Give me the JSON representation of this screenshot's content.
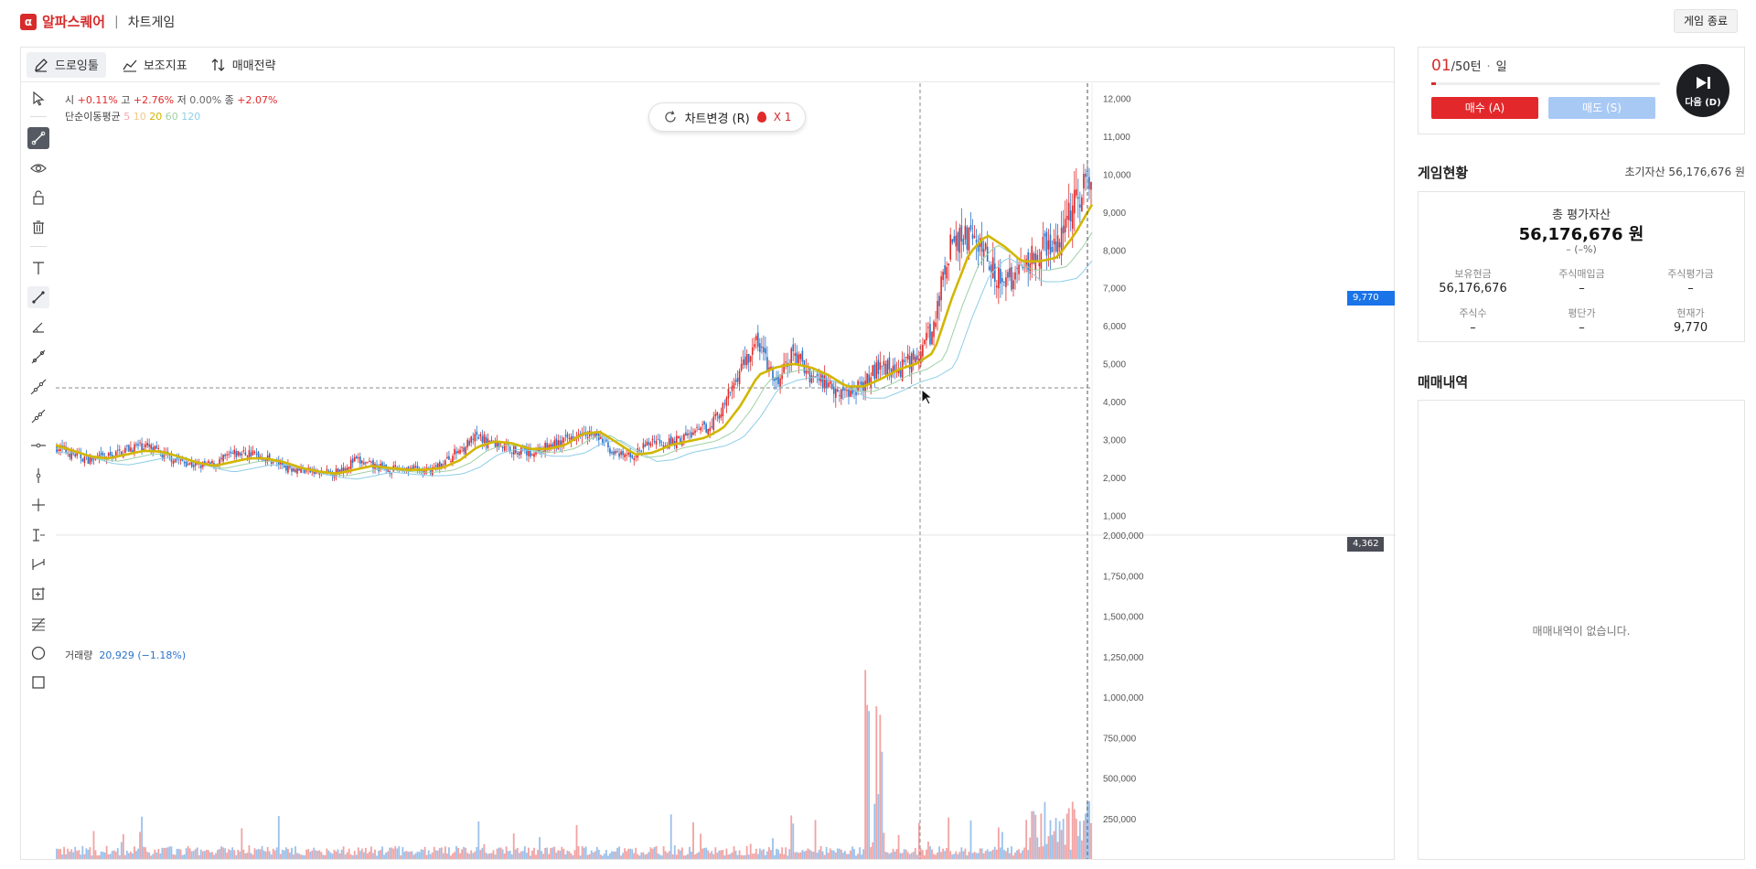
{
  "header": {
    "logo_mark": "α",
    "brand": "알파스퀘어",
    "separator": "|",
    "subtitle": "차트게임",
    "end_button": "게임 종료"
  },
  "toolbar": {
    "drawing": "드로잉툴",
    "indicator": "보조지표",
    "strategy": "매매전략"
  },
  "legend": {
    "open_label": "시",
    "open_val": "+0.11%",
    "high_label": "고",
    "high_val": "+2.76%",
    "low_label": "저",
    "low_val": "0.00%",
    "close_label": "종",
    "close_val": "+2.07%",
    "ma_label": "단순이동평균",
    "ma5": "5",
    "ma10": "10",
    "ma20": "20",
    "ma60": "60",
    "ma120": "120",
    "volume_label": "거래량",
    "volume_val": "20,929 (−1.18%)"
  },
  "chart_change": {
    "label": "차트변경 (R)",
    "count": "X 1"
  },
  "price_labels": {
    "current": "9,770",
    "crosshair": "4,362"
  },
  "colors": {
    "up": "#e02a2a",
    "down": "#2c73c8",
    "ma20": "#d2b600",
    "current_price": "#1a74e8",
    "buy": "#e3282b",
    "sell": "#a9c9f5"
  },
  "chart_data": {
    "type": "candlestick",
    "price_axis_ticks": [
      "12,000",
      "11,000",
      "10,000",
      "9,000",
      "8,000",
      "7,000",
      "6,000",
      "5,000",
      "4,000",
      "3,000",
      "2,000",
      "1,000"
    ],
    "price_ylim": [
      500,
      12400
    ],
    "volume_axis_ticks": [
      "2,000,000",
      "1,750,000",
      "1,500,000",
      "1,250,000",
      "1,000,000",
      "750,000",
      "500,000",
      "250,000"
    ],
    "volume_ylim": [
      0,
      2000000
    ],
    "close_path": [
      2800,
      2600,
      2450,
      2550,
      2750,
      2850,
      2600,
      2450,
      2300,
      2350,
      2600,
      2650,
      2500,
      2300,
      2200,
      2100,
      2150,
      2450,
      2300,
      2200,
      2250,
      2150,
      2350,
      2750,
      3050,
      2900,
      2750,
      2650,
      2800,
      2950,
      3300,
      3000,
      2550,
      2600,
      3000,
      2900,
      3100,
      3300,
      3800,
      4900,
      5600,
      4400,
      5300,
      4700,
      4500,
      4200,
      4500,
      5000,
      4800,
      5200,
      5900,
      8300,
      8300,
      8000,
      7000,
      7600,
      8000,
      8100,
      9400,
      9770
    ],
    "ma20_path": [
      2850,
      2700,
      2550,
      2500,
      2600,
      2700,
      2680,
      2550,
      2400,
      2300,
      2400,
      2500,
      2500,
      2400,
      2250,
      2150,
      2100,
      2200,
      2300,
      2250,
      2200,
      2200,
      2250,
      2450,
      2800,
      2950,
      2900,
      2750,
      2750,
      2850,
      3150,
      3200,
      2900,
      2600,
      2650,
      2850,
      2950,
      3050,
      3300,
      3900,
      4700,
      4900,
      5000,
      4900,
      4700,
      4400,
      4400,
      4600,
      4850,
      5000,
      5300,
      6700,
      7900,
      8400,
      8100,
      7700,
      7700,
      7800,
      8400,
      9200
    ]
  },
  "panel": {
    "turn_big": "01",
    "turn_rest": "/50턴",
    "dot": "·",
    "period": "일",
    "progress": 0.02,
    "buy": "매수 (A)",
    "sell": "매도 (S)",
    "next": "다음 (D)",
    "status_title": "게임현황",
    "init_asset": "초기자산 56,176,676 원",
    "total_label": "총 평가자산",
    "total_val": "56,176,676 원",
    "total_pct": "– (–%)",
    "cash_label": "보유현금",
    "cash_val": "56,176,676",
    "buy_amt_label": "주식매입금",
    "buy_amt_val": "–",
    "eval_label": "주식평가금",
    "eval_val": "–",
    "shares_label": "주식수",
    "shares_val": "–",
    "avg_label": "평단가",
    "avg_val": "–",
    "price_label": "현재가",
    "price_val": "9,770",
    "history_title": "매매내역",
    "history_empty": "매매내역이 없습니다."
  }
}
